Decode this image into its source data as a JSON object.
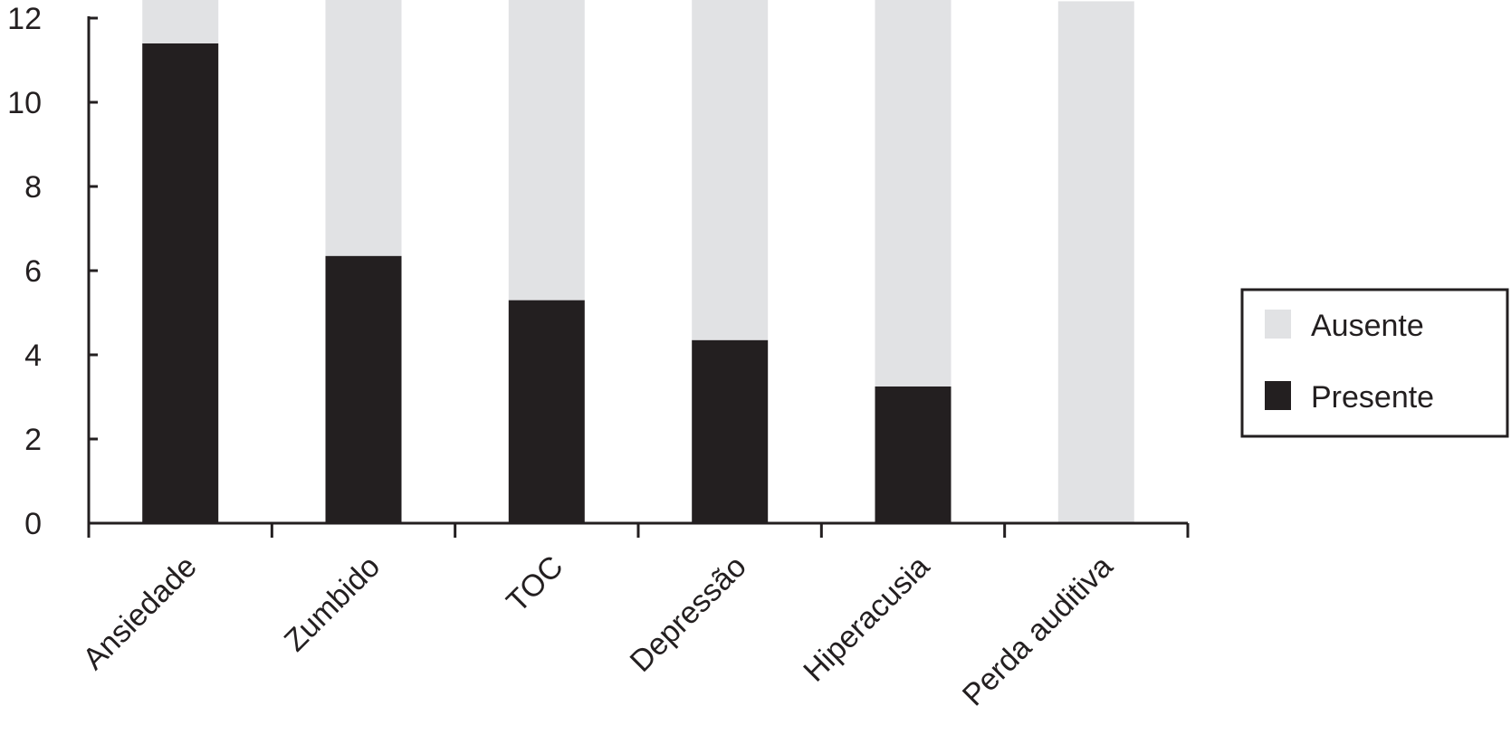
{
  "chart_data": {
    "type": "bar",
    "stacked": true,
    "categories": [
      "Ansiedade",
      "Zumbido",
      "TOC",
      "Depressão",
      "Hiperacusia",
      "Perda auditiva"
    ],
    "series": [
      {
        "name": "Presente",
        "values": [
          11.4,
          6.35,
          5.3,
          4.35,
          3.25,
          0
        ],
        "color": "#231f20"
      },
      {
        "name": "Ausente",
        "values": [
          1.6,
          6.65,
          7.7,
          8.65,
          9.75,
          12.4
        ],
        "color": "#e1e2e4"
      }
    ],
    "yticks": [
      "0",
      "2",
      "4",
      "6",
      "8",
      "10",
      "12"
    ],
    "ylim": [
      0,
      12.5
    ],
    "legend": {
      "position": "right",
      "entries": [
        "Ausente",
        "Presente"
      ]
    },
    "grid": false
  }
}
